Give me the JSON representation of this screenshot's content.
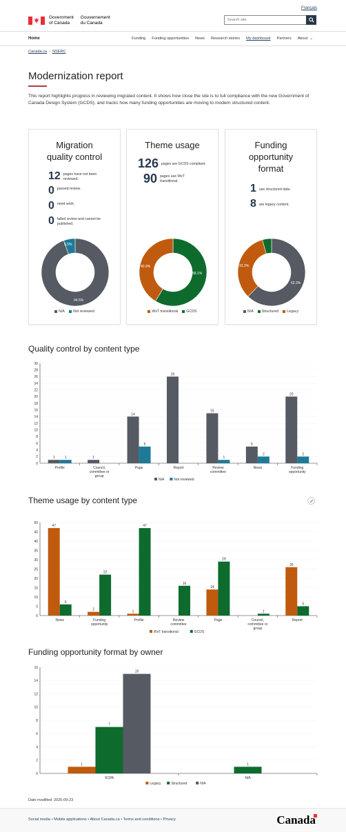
{
  "header": {
    "lang_toggle": "Français",
    "brand_en_line1": "Government",
    "brand_en_line2": "of Canada",
    "brand_fr_line1": "Gouvernement",
    "brand_fr_line2": "du Canada",
    "search_placeholder": "Search site"
  },
  "nav": {
    "home": "Home",
    "items": [
      "Funding",
      "Funding opportunities",
      "News",
      "Research stories",
      "My dashboard",
      "Partners",
      "About"
    ],
    "active": "My dashboard"
  },
  "breadcrumb": [
    "Canada.ca",
    "NSERC"
  ],
  "page": {
    "title": "Modernization report",
    "intro": "This report highlights progress in reviewing migrated content. It shows how close the site is to full compliance with the new Government of Canada Design System (GCDS), and tracks how many funding opportunities are moving to modern structured content."
  },
  "colors": {
    "na": "#555a63",
    "not_reviewed": "#1f7a99",
    "wxt": "#c05a0e",
    "gcds": "#0e6b2e",
    "legacy": "#c05a0e",
    "structured": "#0e6b2e",
    "brand": "#26374a",
    "accent_rule": "#af3c43"
  },
  "cards": [
    {
      "title_line1": "Migration",
      "title_line2": "quality control",
      "stats": [
        {
          "num": "12",
          "label": "pages have not been reviewed."
        },
        {
          "num": "0",
          "label": "passed review."
        },
        {
          "num": "0",
          "label": "need work."
        },
        {
          "num": "0",
          "label": "failed review and cannot be published."
        }
      ],
      "donut": {
        "slices": [
          {
            "name": "N/A",
            "value": 94.5
          },
          {
            "name": "Not reviewed",
            "value": 5.5
          }
        ],
        "labels": [
          "94.5%",
          "5.5%"
        ]
      },
      "legend": [
        "N/A",
        "Not reviewed"
      ]
    },
    {
      "title_line1": "Theme usage",
      "stats": [
        {
          "num": "126",
          "label": "pages are GCDS compliant."
        },
        {
          "num": "90",
          "label": "pages use WxT transitional."
        }
      ],
      "donut": {
        "slices": [
          {
            "name": "GCDS",
            "value": 58.1
          },
          {
            "name": "WxT transitional",
            "value": 40.9
          }
        ],
        "labels": [
          "58.1%",
          "40.9%"
        ]
      },
      "legend": [
        "WxT transitional",
        "GCDS"
      ]
    },
    {
      "title_line1": "Funding",
      "title_line2": "opportunity",
      "title_line3": "format",
      "stats": [
        {
          "num": "1",
          "label": "use structured data."
        },
        {
          "num": "8",
          "label": "are legacy content."
        }
      ],
      "donut": {
        "slices": [
          {
            "name": "N/A",
            "value": 62.3
          },
          {
            "name": "Legacy",
            "value": 33.3
          },
          {
            "name": "Structured",
            "value": 4.4
          }
        ],
        "labels": [
          "62.3%",
          "33.3%"
        ]
      },
      "legend": [
        "N/A",
        "Structured",
        "Legacy"
      ]
    }
  ],
  "chart_data": [
    {
      "type": "bar",
      "title": "Quality control by content type",
      "categories": [
        "Profile",
        "Council, committee or group",
        "Page",
        "Report",
        "Review committee",
        "News",
        "Funding opportunity"
      ],
      "series": [
        {
          "name": "N/A",
          "values": [
            1,
            1,
            14,
            26,
            15,
            5,
            20
          ]
        },
        {
          "name": "Not reviewed",
          "values": [
            1,
            0,
            5,
            0,
            1,
            2,
            2
          ]
        }
      ],
      "ylim": [
        0,
        30
      ],
      "yticks": [
        0,
        2,
        4,
        6,
        8,
        10,
        12,
        14,
        16,
        18,
        20,
        22,
        24,
        26,
        28,
        30
      ]
    },
    {
      "type": "bar",
      "title": "Theme usage by content type",
      "categories": [
        "News",
        "Funding opportunity",
        "Profile",
        "Review committee",
        "Page",
        "Council, committee or group",
        "Report"
      ],
      "series": [
        {
          "name": "WxT transitional",
          "values": [
            47,
            2,
            1,
            0,
            14,
            0,
            26
          ]
        },
        {
          "name": "GCDS",
          "values": [
            6,
            22,
            47,
            16,
            29,
            1,
            5
          ]
        }
      ],
      "ylim": [
        0,
        50
      ],
      "yticks": [
        0,
        5,
        10,
        15,
        20,
        25,
        30,
        35,
        40,
        45,
        50
      ]
    },
    {
      "type": "bar",
      "title": "Funding opportunity format by owner",
      "categories": [
        "SCPA",
        "N/A"
      ],
      "series": [
        {
          "name": "Legacy",
          "values": [
            1,
            0
          ]
        },
        {
          "name": "Structured",
          "values": [
            7,
            1
          ]
        },
        {
          "name": "N/A",
          "values": [
            15,
            0
          ]
        }
      ],
      "ylim": [
        0,
        16
      ],
      "yticks": [
        0,
        2,
        4,
        6,
        8,
        10,
        12,
        14,
        16
      ]
    }
  ],
  "footer": {
    "date_modified": "Date modified: 2025-09-23",
    "links": [
      "Social media",
      "Mobile applications",
      "About Canada.ca",
      "Terms and conditions",
      "Privacy"
    ],
    "wordmark": "Canada"
  }
}
